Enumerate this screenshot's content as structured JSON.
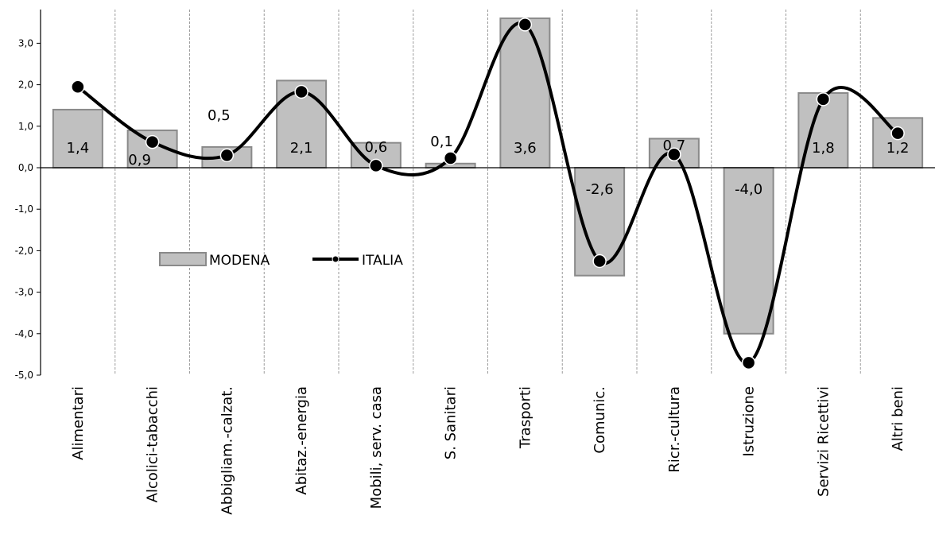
{
  "chart_data": {
    "type": "bar",
    "categories": [
      "Alimentari",
      "Alcolici-tabacchi",
      "Abbigliam.-calzat.",
      "Abitaz.-energia",
      "Mobili, serv. casa",
      "S. Sanitari",
      "Trasporti",
      "Comunic.",
      "Ricr.-cultura",
      "Istruzione",
      "Servizi Ricettivi",
      "Altri beni"
    ],
    "series": [
      {
        "name": "MODENA",
        "type": "bar",
        "color": "#c0c0c0",
        "values": [
          1.4,
          0.9,
          0.5,
          2.1,
          0.6,
          0.1,
          3.6,
          -2.6,
          0.7,
          -4.0,
          1.8,
          1.2
        ]
      },
      {
        "name": "ITALIA",
        "type": "line",
        "color": "#000000",
        "values": [
          1.95,
          0.62,
          0.3,
          1.83,
          0.05,
          0.23,
          3.45,
          -2.25,
          0.32,
          -4.7,
          1.65,
          0.83
        ]
      }
    ],
    "data_labels": [
      "1,4",
      "0,9",
      "0,5",
      "2,1",
      "0,6",
      "0,1",
      "3,6",
      "-2,6",
      "0,7",
      "-4,0",
      "1,8",
      "1,2"
    ],
    "y_ticks": [
      "3,0",
      "2,0",
      "1,0",
      "0,0",
      "-1,0",
      "-2,0",
      "-3,0",
      "-4,0",
      "-5,0"
    ],
    "ylim": [
      -5.0,
      3.8
    ],
    "legend_position": "inside-left",
    "vertical_dashed_grid": true,
    "title": "",
    "xlabel": "",
    "ylabel": ""
  }
}
